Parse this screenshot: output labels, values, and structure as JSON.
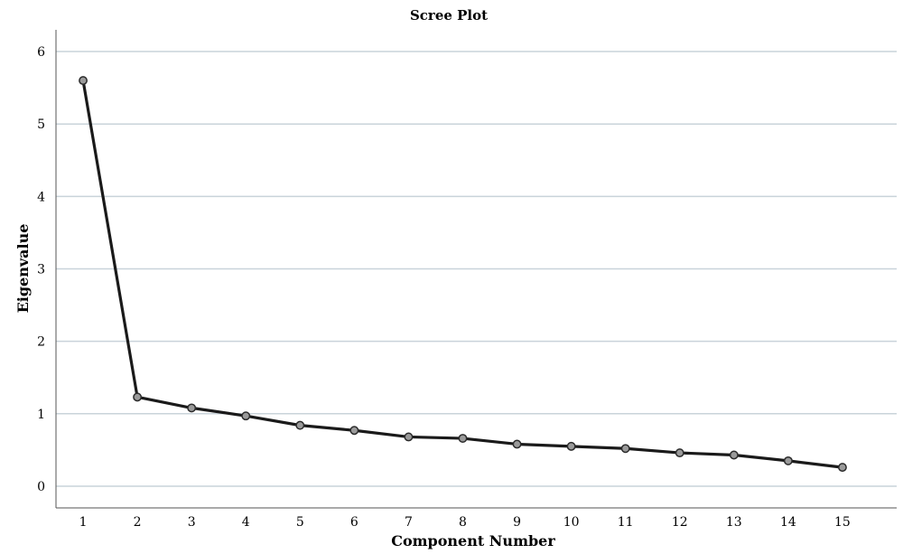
{
  "chart_data": {
    "type": "line",
    "title": "Scree Plot",
    "xlabel": "Component Number",
    "ylabel": "Eigenvalue",
    "x": [
      1,
      2,
      3,
      4,
      5,
      6,
      7,
      8,
      9,
      10,
      11,
      12,
      13,
      14,
      15
    ],
    "series": [
      {
        "values": [
          5.6,
          1.23,
          1.08,
          0.97,
          0.84,
          0.77,
          0.68,
          0.66,
          0.58,
          0.55,
          0.52,
          0.46,
          0.43,
          0.35,
          0.26
        ]
      }
    ],
    "xlim": [
      0.5,
      16
    ],
    "ylim": [
      -0.3,
      6.3
    ],
    "yticks": [
      0,
      1,
      2,
      3,
      4,
      5,
      6
    ],
    "xticks": [
      "1",
      "2",
      "3",
      "4",
      "5",
      "6",
      "7",
      "8",
      "9",
      "10",
      "11",
      "12",
      "13",
      "14",
      "15"
    ],
    "grid": true,
    "colors": {
      "line": "#1a1a1a",
      "marker_fill": "#9a9a9a",
      "marker_stroke": "#2b2b2b",
      "grid": "#c9d3da"
    }
  }
}
